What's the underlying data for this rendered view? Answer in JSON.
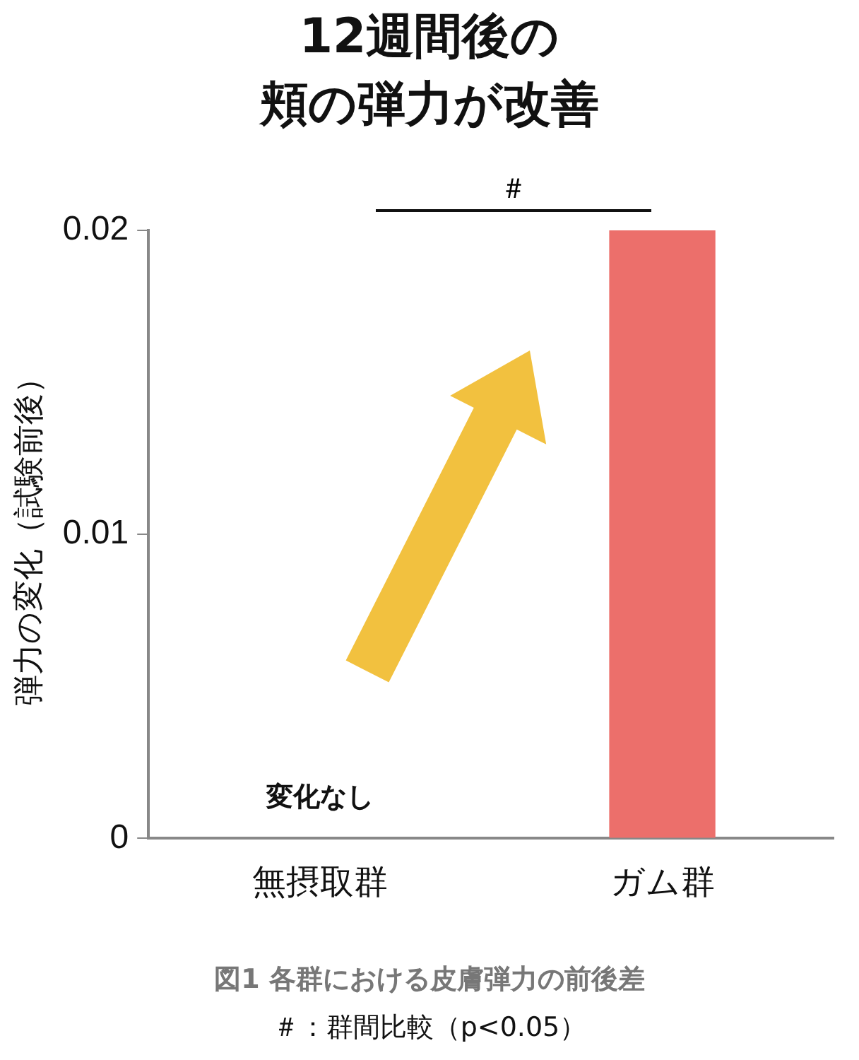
{
  "chart_data": {
    "type": "bar",
    "title": "12週間後の",
    "subtitle": "頬の弾力が改善",
    "ylabel": "弾力の変化（試験前後）",
    "categories": [
      "無摂取群",
      "ガム群"
    ],
    "values": [
      0,
      0.02
    ],
    "color": "#ec6f6b",
    "ylim": [
      0,
      0.02
    ],
    "yticks": [
      0,
      0.01,
      0.02
    ],
    "grid": false,
    "legend": false,
    "annotations": [
      "＃",
      "変化なし",
      "図1 各群における皮膚弾力の前後差",
      "＃：群間比較（p<0.05）"
    ]
  }
}
